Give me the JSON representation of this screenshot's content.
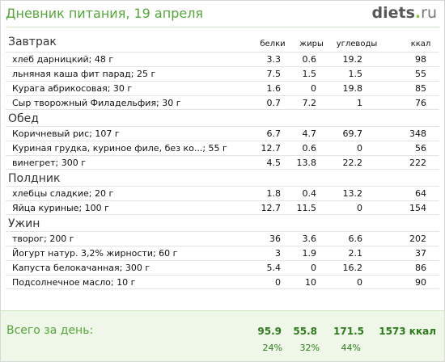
{
  "header": {
    "title": "Дневник питания, 19 апреля",
    "logo_main": "diets",
    "logo_dot": ".",
    "logo_tld": "ru"
  },
  "columns": {
    "protein": "белки",
    "fat": "жиры",
    "carbs": "углеводы",
    "kcal": "ккал"
  },
  "meals": [
    {
      "title": "Завтрак",
      "items": [
        {
          "name": "хлеб дарницкий; 48 г",
          "protein": "3.3",
          "fat": "0.6",
          "carbs": "19.2",
          "kcal": "98"
        },
        {
          "name": "льняная каша фит парад; 25 г",
          "protein": "7.5",
          "fat": "1.5",
          "carbs": "1.5",
          "kcal": "55"
        },
        {
          "name": "Курага абрикосовая; 30 г",
          "protein": "1.6",
          "fat": "0",
          "carbs": "19.8",
          "kcal": "85"
        },
        {
          "name": "Сыр творожный Филадельфия; 30 г",
          "protein": "0.7",
          "fat": "7.2",
          "carbs": "1",
          "kcal": "76"
        }
      ]
    },
    {
      "title": "Обед",
      "items": [
        {
          "name": "Коричневый рис; 107 г",
          "protein": "6.7",
          "fat": "4.7",
          "carbs": "69.7",
          "kcal": "348"
        },
        {
          "name": "Куриная грудка, куриное филе, без ко...; 55 г",
          "protein": "12.7",
          "fat": "0.6",
          "carbs": "0",
          "kcal": "56"
        },
        {
          "name": "винегрет; 300 г",
          "protein": "4.5",
          "fat": "13.8",
          "carbs": "22.2",
          "kcal": "222"
        }
      ]
    },
    {
      "title": "Полдник",
      "items": [
        {
          "name": "хлебцы сладкие; 20 г",
          "protein": "1.8",
          "fat": "0.4",
          "carbs": "13.2",
          "kcal": "64"
        },
        {
          "name": "Яйца куриные; 100 г",
          "protein": "12.7",
          "fat": "11.5",
          "carbs": "0",
          "kcal": "154"
        }
      ]
    },
    {
      "title": "Ужин",
      "items": [
        {
          "name": "творог; 200 г",
          "protein": "36",
          "fat": "3.6",
          "carbs": "6.6",
          "kcal": "202"
        },
        {
          "name": "Йогурт натур. 3,2% жирности; 60 г",
          "protein": "3",
          "fat": "1.9",
          "carbs": "2.1",
          "kcal": "37"
        },
        {
          "name": "Капуста белокачанная; 300 г",
          "protein": "5.4",
          "fat": "0",
          "carbs": "16.2",
          "kcal": "86"
        },
        {
          "name": "Подсолнечное масло; 10 г",
          "protein": "0",
          "fat": "10",
          "carbs": "0",
          "kcal": "90"
        }
      ]
    }
  ],
  "totals": {
    "label": "Всего за день:",
    "protein": "95.9",
    "fat": "55.8",
    "carbs": "171.5",
    "kcal": "1573 ккал",
    "protein_pct": "24%",
    "fat_pct": "32%",
    "carbs_pct": "44%"
  },
  "colors": {
    "accent_green": "#55a63a",
    "footer_bg": "#eef7e8",
    "totals_text": "#2c7a1a"
  }
}
